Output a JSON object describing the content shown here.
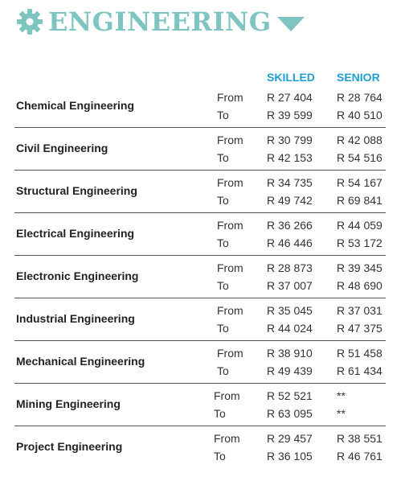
{
  "header": {
    "title": "ENGINEERING",
    "accent": "#7ec4c1",
    "icon": "gear-icon",
    "toggle_icon": "caret-down-icon"
  },
  "columns": {
    "skilled": "SKILLED",
    "senior": "SENIOR",
    "color": "#1e9fd4"
  },
  "labels": {
    "from": "From",
    "to": "To"
  },
  "rows": [
    {
      "name": "Chemical Engineering",
      "skilled_from": "R 27 404",
      "skilled_to": "R 39 599",
      "senior_from": "R 28 764",
      "senior_to": "R 40 510"
    },
    {
      "name": "Civil Engineering",
      "skilled_from": "R 30 799",
      "skilled_to": "R 42 153",
      "senior_from": "R 42 088",
      "senior_to": "R 54 516"
    },
    {
      "name": "Structural Engineering",
      "skilled_from": "R 34 735",
      "skilled_to": "R 49 742",
      "senior_from": "R 54 167",
      "senior_to": "R 69 841"
    },
    {
      "name": "Electrical Engineering",
      "skilled_from": "R 36 266",
      "skilled_to": "R 46 446",
      "senior_from": "R 44 059",
      "senior_to": "R 53 172"
    },
    {
      "name": "Electronic Engineering",
      "skilled_from": "R 28 873",
      "skilled_to": "R 37 007",
      "senior_from": "R 39 345",
      "senior_to": "R 48 690"
    },
    {
      "name": "Industrial Engineering",
      "skilled_from": "R 35 045",
      "skilled_to": "R 44 024",
      "senior_from": "R 37 031",
      "senior_to": "R 47 375"
    },
    {
      "name": "Mechanical Engineering",
      "skilled_from": "R 38 910",
      "skilled_to": "R 49 439",
      "senior_from": "R 51 458",
      "senior_to": "R 61 434"
    },
    {
      "name": "Mining Engineering",
      "skilled_from": "R 52 521",
      "skilled_to": "R 63 095",
      "senior_from": "**",
      "senior_to": "**"
    },
    {
      "name": "Project Engineering",
      "skilled_from": "R 29 457",
      "skilled_to": "R 36 105",
      "senior_from": "R 38 551",
      "senior_to": "R 46 761"
    }
  ]
}
